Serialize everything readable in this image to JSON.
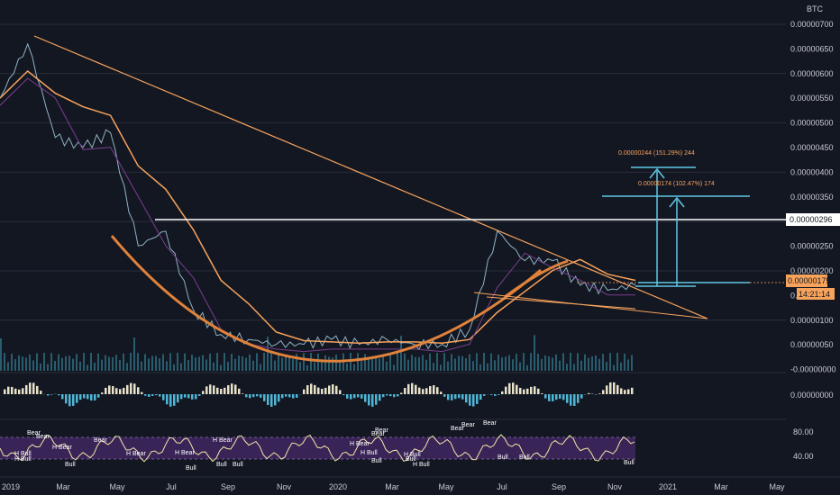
{
  "chart_data": {
    "type": "line",
    "currency": "BTC",
    "x_ticks": [
      "2019",
      "Mar",
      "May",
      "Jul",
      "Sep",
      "Nov",
      "2020",
      "Mar",
      "May",
      "Jul",
      "Sep",
      "Nov",
      "2021",
      "Mar",
      "May"
    ],
    "y_ticks": [
      "0.00000700",
      "0.00000650",
      "0.00000600",
      "0.00000550",
      "0.00000500",
      "0.00000450",
      "0.00000400",
      "0.00000350",
      "0.00000300",
      "0.00000250",
      "0.00000200",
      "0.00000150",
      "0.00000100",
      "0.00000050",
      "-0.00000000"
    ],
    "ylim": [
      0,
      7e-06
    ],
    "price_series_x": [
      "2018-12",
      "2019-01",
      "2019-02",
      "2019-03",
      "2019-04",
      "2019-05",
      "2019-06",
      "2019-07",
      "2019-08",
      "2019-09",
      "2019-10",
      "2019-11",
      "2019-12",
      "2020-01",
      "2020-02",
      "2020-03",
      "2020-04",
      "2020-05",
      "2020-06",
      "2020-07",
      "2020-08",
      "2020-09",
      "2020-10",
      "2020-11"
    ],
    "price_series_values": [
      5.5e-06,
      6.6e-06,
      4.7e-06,
      4.5e-06,
      4.8e-06,
      2.5e-06,
      2.8e-06,
      1.2e-06,
      7e-07,
      6e-07,
      5e-07,
      5e-07,
      6e-07,
      5e-07,
      6e-07,
      5e-07,
      5e-07,
      8e-07,
      2.8e-06,
      2.2e-06,
      2.2e-06,
      1.7e-06,
      1.6e-06,
      1.7e-06
    ],
    "resistance_level": "0.00000296",
    "current_price": "0.00000175",
    "countdown": "14:21:14",
    "target_1": "0.00000174 (102.47%) 174",
    "target_2": "0.00000244 (151.29%) 244",
    "macd_value": "0.00000000",
    "rsi_ticks": [
      "80.00",
      "40.00"
    ],
    "rsi_labels": [
      "Bear",
      "Bear",
      "H Bear",
      "H Bull",
      "Bull",
      "Bear",
      "H Bear",
      "H Bear",
      "Bull",
      "H Bear",
      "Bull",
      "Bull",
      "H Bear",
      "H Bull",
      "Bear",
      "H Bull",
      "Bear",
      "H Bull",
      "Bull",
      "H Bull",
      "Bear",
      "Bear",
      "Bear",
      "Bull",
      "Bull",
      "Bull",
      "Bull"
    ],
    "colors": {
      "background": "#131722",
      "orange": "#f7a35c",
      "cyan": "#5fc8e6",
      "white": "#ffffff",
      "rsi_band": "#4a2b6e"
    }
  }
}
